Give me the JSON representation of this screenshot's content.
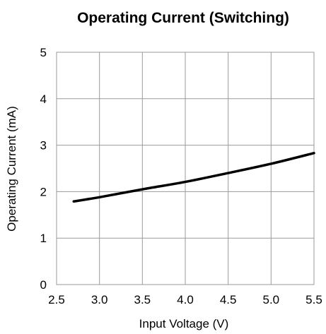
{
  "chart_data": {
    "type": "line",
    "title": "Operating Current (Switching)",
    "xlabel": "Input Voltage (V)",
    "ylabel": "Operating Current (mA)",
    "xlim": [
      2.5,
      5.5
    ],
    "ylim": [
      0,
      5
    ],
    "xticks": [
      "2.5",
      "3.0",
      "3.5",
      "4.0",
      "4.5",
      "5.0",
      "5.5"
    ],
    "yticks": [
      "0",
      "1",
      "2",
      "3",
      "4",
      "5"
    ],
    "grid": true,
    "series": [
      {
        "x": [
          2.7,
          3.0,
          3.5,
          4.0,
          4.5,
          5.0,
          5.5
        ],
        "y": [
          1.79,
          1.88,
          2.05,
          2.21,
          2.4,
          2.6,
          2.83
        ]
      }
    ]
  }
}
